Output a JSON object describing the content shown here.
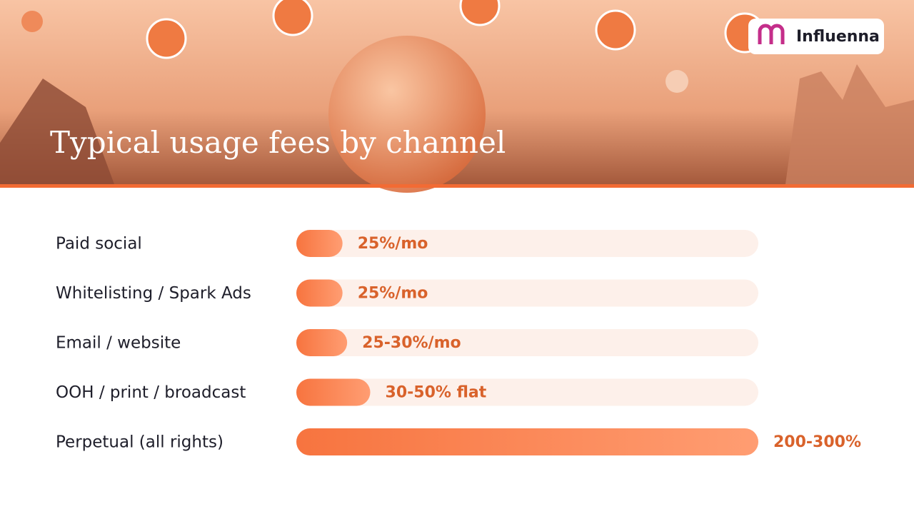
{
  "brand": "Influenna",
  "chart_data": {
    "type": "hbar",
    "title": "Typical usage fees by channel",
    "categories": [
      "Paid social",
      "Whitelisting / Spark Ads",
      "Email / website",
      "OOH / print / broadcast",
      "Perpetual (all rights)"
    ],
    "values": [
      25,
      25,
      27.5,
      40,
      250
    ],
    "value_labels": [
      "25%/mo",
      "25%/mo",
      "25-30%/mo",
      "30-50% flat",
      "200-300%"
    ],
    "xlim": [
      0,
      250
    ],
    "color": "#f97a45"
  }
}
